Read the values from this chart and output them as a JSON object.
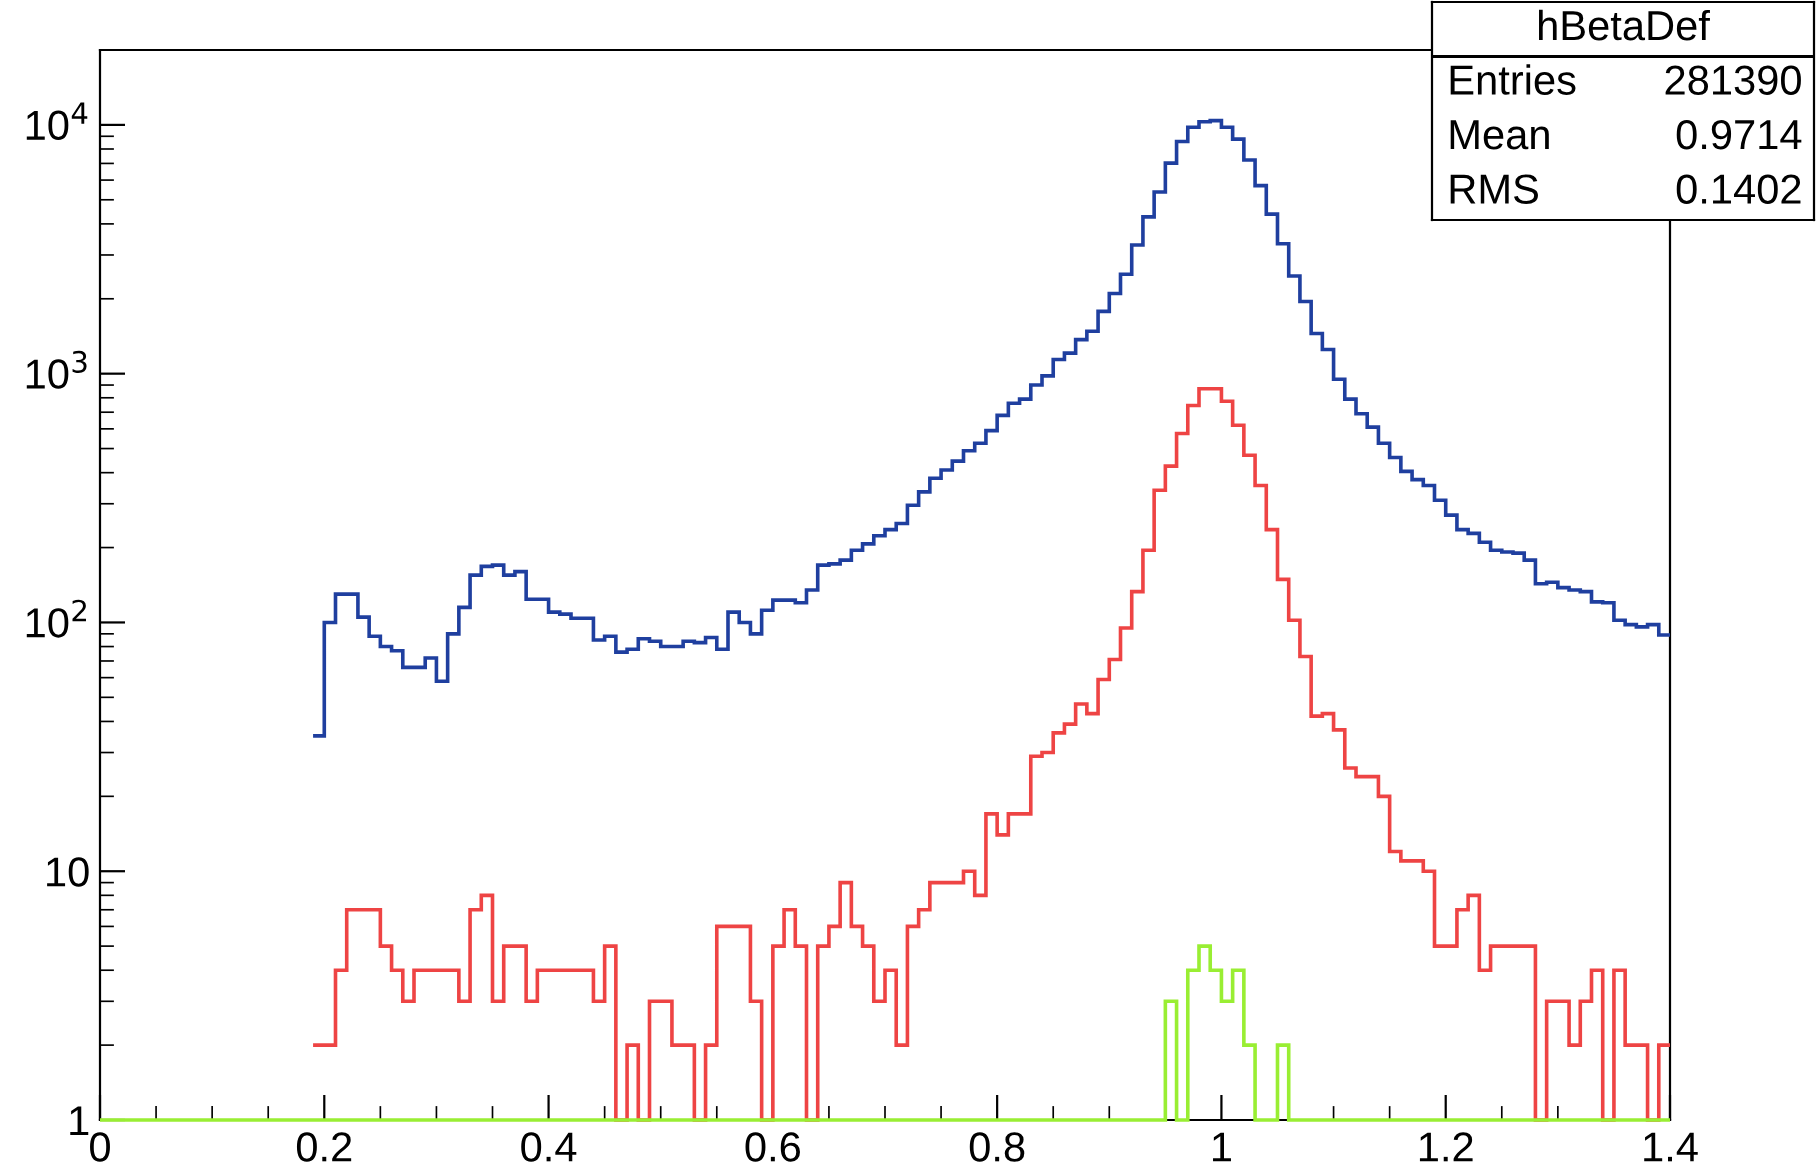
{
  "chart_data": {
    "type": "histogram",
    "bins": [
      0,
      0.01,
      0.02,
      0.03,
      0.04,
      0.05,
      0.06,
      0.07,
      0.08,
      0.09,
      0.1,
      0.11,
      0.12,
      0.13,
      0.14,
      0.15,
      0.16,
      0.17,
      0.18,
      0.19,
      0.2,
      0.21,
      0.22,
      0.23,
      0.24,
      0.25,
      0.26,
      0.27,
      0.28,
      0.29,
      0.3,
      0.31,
      0.32,
      0.33,
      0.34,
      0.35,
      0.36,
      0.37,
      0.38,
      0.39,
      0.4,
      0.41,
      0.42,
      0.43,
      0.44,
      0.45,
      0.46,
      0.47,
      0.48,
      0.49,
      0.5,
      0.51,
      0.52,
      0.53,
      0.54,
      0.55,
      0.56,
      0.57,
      0.58,
      0.59,
      0.6,
      0.61,
      0.62,
      0.63,
      0.64,
      0.65,
      0.66,
      0.67,
      0.68,
      0.69,
      0.7,
      0.71,
      0.72,
      0.73,
      0.74,
      0.75,
      0.76,
      0.77,
      0.78,
      0.79,
      0.8,
      0.81,
      0.82,
      0.83,
      0.84,
      0.85,
      0.86,
      0.87,
      0.88,
      0.89,
      0.9,
      0.91,
      0.92,
      0.93,
      0.94,
      0.95,
      0.96,
      0.97,
      0.98,
      0.99,
      1,
      1.01,
      1.02,
      1.03,
      1.04,
      1.05,
      1.06,
      1.07,
      1.08,
      1.09,
      1.1,
      1.11,
      1.12,
      1.13,
      1.14,
      1.15,
      1.16,
      1.17,
      1.18,
      1.19,
      1.2,
      1.21,
      1.22,
      1.23,
      1.24,
      1.25,
      1.26,
      1.27,
      1.28,
      1.29,
      1.3,
      1.31,
      1.32,
      1.33,
      1.34,
      1.35,
      1.36,
      1.37,
      1.38,
      1.39,
      1.4
    ],
    "series": [
      {
        "color": "#1f3f9f",
        "bins": [
          0.19,
          0.2,
          0.21,
          0.22,
          0.23,
          0.24,
          0.25,
          0.26,
          0.27,
          0.28,
          0.29,
          0.3,
          0.31,
          0.32,
          0.33,
          0.34,
          0.35,
          0.36,
          0.37,
          0.38,
          0.39,
          0.4,
          0.41,
          0.42,
          0.43,
          0.44,
          0.45,
          0.46,
          0.47,
          0.48,
          0.49,
          0.5,
          0.51,
          0.52,
          0.53,
          0.54,
          0.55,
          0.56,
          0.57,
          0.58,
          0.59,
          0.6,
          0.61,
          0.62,
          0.63,
          0.64,
          0.65,
          0.66,
          0.67,
          0.68,
          0.69,
          0.7,
          0.71,
          0.72,
          0.73,
          0.74,
          0.75,
          0.76,
          0.77,
          0.78,
          0.79,
          0.8,
          0.81,
          0.82,
          0.83,
          0.84,
          0.85,
          0.86,
          0.87,
          0.88,
          0.89,
          0.9,
          0.91,
          0.92,
          0.93,
          0.94,
          0.95,
          0.96,
          0.97,
          0.98,
          0.99,
          1,
          1.01,
          1.02,
          1.03,
          1.04,
          1.05,
          1.06,
          1.07,
          1.08,
          1.09,
          1.1,
          1.11,
          1.12,
          1.13,
          1.14,
          1.15,
          1.16,
          1.17,
          1.18,
          1.19,
          1.2,
          1.21,
          1.22,
          1.23,
          1.24,
          1.25,
          1.26,
          1.27,
          1.28,
          1.29,
          1.3,
          1.31,
          1.32,
          1.33,
          1.34,
          1.35,
          1.36,
          1.37,
          1.38,
          1.39,
          1.4
        ],
        "values": [
          35,
          100,
          130,
          130,
          105,
          88,
          80,
          77,
          66,
          66,
          72,
          58,
          90,
          115,
          155,
          168,
          170,
          155,
          160,
          124,
          124,
          110,
          108,
          104,
          104,
          85,
          88,
          76,
          78,
          86,
          84,
          80,
          80,
          84,
          83,
          87,
          78,
          110,
          100,
          90,
          112,
          123,
          123,
          120,
          135,
          170,
          172,
          178,
          195,
          207,
          223,
          236,
          250,
          296,
          335,
          380,
          410,
          445,
          490,
          525,
          590,
          680,
          760,
          790,
          900,
          980,
          1140,
          1210,
          1370,
          1480,
          1780,
          2100,
          2510,
          3290,
          4270,
          5370,
          7020,
          8570,
          9780,
          10300,
          10400,
          9780,
          8770,
          7230,
          5700,
          4380,
          3330,
          2470,
          1950,
          1450,
          1250,
          950,
          790,
          690,
          610,
          525,
          460,
          405,
          375,
          355,
          310,
          270,
          236,
          228,
          210,
          195,
          192,
          190,
          178,
          143,
          145,
          138,
          135,
          133,
          121,
          120,
          102,
          98,
          96,
          98,
          89
        ]
      },
      {
        "color": "#ee4444",
        "bins": [
          0.19,
          0.2,
          0.21,
          0.22,
          0.23,
          0.24,
          0.25,
          0.26,
          0.27,
          0.28,
          0.29,
          0.3,
          0.31,
          0.32,
          0.33,
          0.34,
          0.35,
          0.36,
          0.37,
          0.38,
          0.39,
          0.4,
          0.41,
          0.42,
          0.43,
          0.44,
          0.45,
          0.46,
          0.47,
          0.48,
          0.49,
          0.5,
          0.51,
          0.52,
          0.53,
          0.54,
          0.55,
          0.56,
          0.57,
          0.58,
          0.59,
          0.6,
          0.61,
          0.62,
          0.63,
          0.64,
          0.65,
          0.66,
          0.67,
          0.68,
          0.69,
          0.7,
          0.71,
          0.72,
          0.73,
          0.74,
          0.75,
          0.76,
          0.77,
          0.78,
          0.79,
          0.8,
          0.81,
          0.82,
          0.83,
          0.84,
          0.85,
          0.86,
          0.87,
          0.88,
          0.89,
          0.9,
          0.91,
          0.92,
          0.93,
          0.94,
          0.95,
          0.96,
          0.97,
          0.98,
          0.99,
          1,
          1.01,
          1.02,
          1.03,
          1.04,
          1.05,
          1.06,
          1.07,
          1.08,
          1.09,
          1.1,
          1.11,
          1.12,
          1.13,
          1.14,
          1.15,
          1.16,
          1.17,
          1.18,
          1.19,
          1.2,
          1.21,
          1.22,
          1.23,
          1.24,
          1.25,
          1.26,
          1.27,
          1.28,
          1.29,
          1.3,
          1.31,
          1.32,
          1.33,
          1.34,
          1.35,
          1.36,
          1.37,
          1.38,
          1.39,
          1.4
        ],
        "values": [
          2,
          2,
          4,
          7,
          7,
          7,
          5,
          4,
          3,
          4,
          4,
          4,
          4,
          3,
          7,
          8,
          3,
          5,
          5,
          3,
          4,
          4,
          4,
          4,
          4,
          3,
          5,
          1,
          2,
          1,
          3,
          3,
          2,
          2,
          1,
          2,
          6,
          6,
          6,
          3,
          1,
          5,
          7,
          5,
          1,
          5,
          6,
          9,
          6,
          5,
          3,
          4,
          2,
          6,
          7,
          9,
          9,
          9,
          10,
          8,
          17,
          14,
          17,
          17,
          29,
          30,
          36,
          39,
          47,
          43,
          59,
          71,
          95,
          133,
          195,
          340,
          425,
          575,
          745,
          870,
          870,
          775,
          620,
          470,
          355,
          236,
          149,
          102,
          73,
          42,
          43,
          37,
          26,
          24,
          24,
          20,
          12,
          11,
          11,
          10,
          5,
          5,
          7,
          8,
          4,
          5,
          5,
          5,
          5,
          1,
          3,
          3,
          2,
          3,
          4,
          1,
          4,
          2,
          2,
          1,
          2
        ]
      },
      {
        "color": "#99ee33",
        "values": [
          1,
          1,
          1,
          1,
          1,
          1,
          1,
          1,
          1,
          1,
          1,
          1,
          1,
          1,
          1,
          1,
          1,
          1,
          1,
          1,
          1,
          1,
          1,
          1,
          1,
          1,
          1,
          1,
          1,
          1,
          1,
          1,
          1,
          1,
          1,
          1,
          1,
          1,
          1,
          1,
          1,
          1,
          1,
          1,
          1,
          1,
          1,
          1,
          1,
          1,
          1,
          1,
          1,
          1,
          1,
          1,
          1,
          1,
          1,
          1,
          1,
          1,
          1,
          1,
          1,
          1,
          1,
          1,
          1,
          1,
          1,
          1,
          1,
          1,
          1,
          1,
          1,
          1,
          1,
          1,
          1,
          1,
          1,
          1,
          1,
          1,
          1,
          1,
          1,
          1,
          1,
          1,
          1,
          1,
          1,
          3,
          1,
          4,
          5,
          4,
          3,
          4,
          2,
          1,
          1,
          2,
          1,
          1,
          1,
          1,
          1,
          1,
          1,
          1,
          1,
          1,
          1,
          1,
          1,
          1,
          1,
          1,
          1,
          1,
          1,
          1,
          1,
          1,
          1,
          1,
          1,
          1,
          1,
          1,
          1,
          1,
          1,
          1,
          1,
          1
        ]
      }
    ],
    "log": true,
    "xlim": [
      0,
      1.4
    ],
    "xticks": [
      0,
      0.2,
      0.4,
      0.6,
      0.8,
      1,
      1.2,
      1.4
    ],
    "ylim": [
      1,
      20000
    ],
    "yticks": [
      1,
      10,
      {
        "value": 100,
        "label": "10$^{2}$"
      },
      {
        "value": 1000,
        "label": "10$^{3}$"
      },
      {
        "value": 10000,
        "label": "10$^{4}$"
      }
    ],
    "annotations": [
      "hBetaDef",
      "Entries",
      "281390",
      "Mean",
      "0.9714",
      "RMS",
      "0.1402"
    ]
  }
}
